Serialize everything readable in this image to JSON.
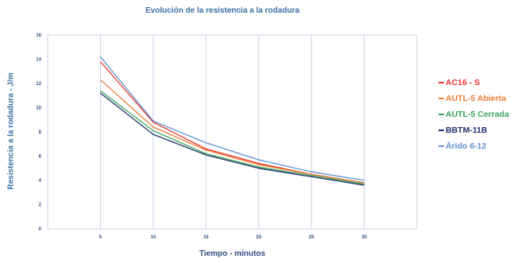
{
  "chart_data": {
    "type": "line",
    "title": "Evolución de la resistencia a la rodadura",
    "xlabel": "Tiempo - minutos",
    "ylabel": "Resistencia a la rodadura - J/m",
    "x": [
      5,
      10,
      15,
      20,
      25,
      30
    ],
    "xlim": [
      0,
      35
    ],
    "ylim": [
      0,
      16
    ],
    "x_ticks": [
      "5",
      "10",
      "15",
      "20",
      "25",
      "30"
    ],
    "y_ticks": [
      "0",
      "2",
      "4",
      "6",
      "8",
      "10",
      "12",
      "14",
      "16"
    ],
    "grid": "vertical",
    "legend_position": "right",
    "series": [
      {
        "name": "AC16 - S",
        "color": "#e8322a",
        "values": [
          13.8,
          8.8,
          6.6,
          5.4,
          4.5,
          3.8
        ]
      },
      {
        "name": "AUTL-5 Abierta",
        "color": "#ec7a34",
        "values": [
          12.3,
          8.4,
          6.5,
          5.3,
          4.5,
          3.8
        ]
      },
      {
        "name": "AUTL-5 Cerrada",
        "color": "#3aa55a",
        "values": [
          11.4,
          8.1,
          6.2,
          5.1,
          4.4,
          3.7
        ]
      },
      {
        "name": "BBTM-11B",
        "color": "#1f2f6b",
        "values": [
          11.2,
          7.8,
          6.1,
          5.0,
          4.3,
          3.6
        ]
      },
      {
        "name": "Árido 6-12",
        "color": "#5f8fd0",
        "values": [
          14.2,
          8.9,
          7.1,
          5.7,
          4.7,
          4.0
        ]
      }
    ]
  }
}
